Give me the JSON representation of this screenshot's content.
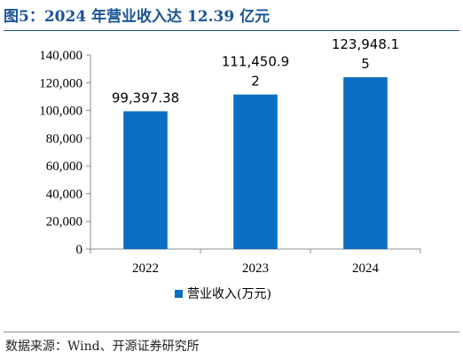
{
  "header": {
    "title": "图5：2024 年营业收入达 12.39 亿元"
  },
  "footer": {
    "source": "数据来源：Wind、开源证券研究所"
  },
  "chart_data": {
    "type": "bar",
    "title": "图5：2024 年营业收入达 12.39 亿元",
    "categories": [
      "2022",
      "2023",
      "2024"
    ],
    "series": [
      {
        "name": "营业收入(万元)",
        "values": [
          99397.38,
          111450.92,
          123948.15
        ],
        "color": "#0a6fc2"
      }
    ],
    "data_labels": [
      [
        "99,397.38"
      ],
      [
        "111,450.9",
        "2"
      ],
      [
        "123,948.1",
        "5"
      ]
    ],
    "ylim": [
      0,
      140000
    ],
    "yticks": [
      0,
      20000,
      40000,
      60000,
      80000,
      100000,
      120000,
      140000
    ],
    "ytick_labels": [
      "0",
      "20,000",
      "40,000",
      "60,000",
      "80,000",
      "100,000",
      "120,000",
      "140,000"
    ],
    "grid": false,
    "legend_position": "bottom-center"
  }
}
